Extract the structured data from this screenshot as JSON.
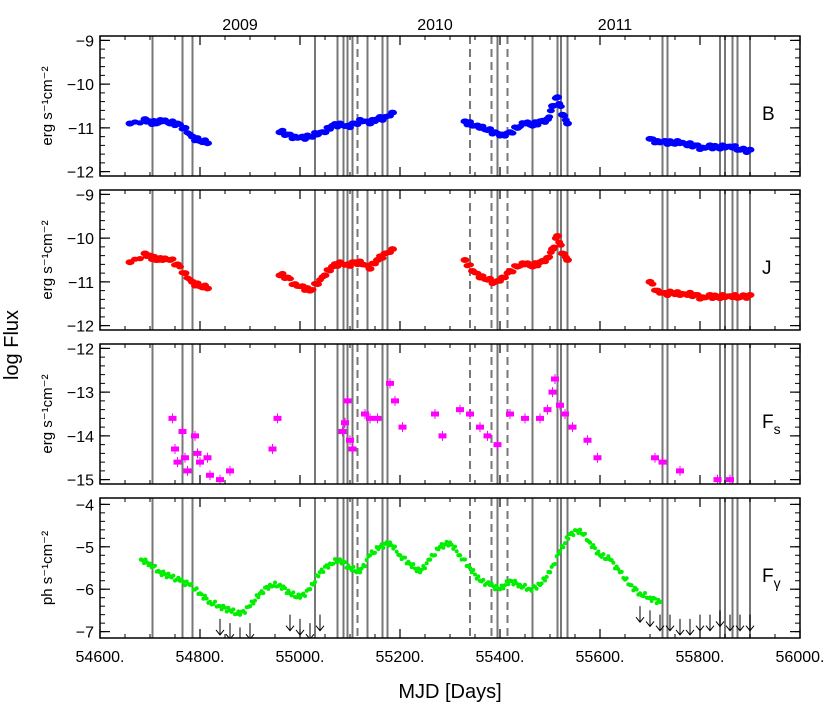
{
  "figure": {
    "ylabel": "log Flux",
    "xlabel": "MJD [Days]",
    "year_labels": [
      {
        "text": "2009",
        "mjd": 54880
      },
      {
        "text": "2010",
        "mjd": 55270
      },
      {
        "text": "2011",
        "mjd": 55630
      }
    ]
  },
  "colors": {
    "B": "#0000ff",
    "J": "#ff0000",
    "Fs": "#ff00ff",
    "Fgamma": "#00ee00",
    "upper_limits": "#000000",
    "event_lines": "#777777"
  },
  "chart_data": [
    {
      "type": "scatter",
      "panel": "B",
      "label": "B",
      "ylabel": "erg s⁻¹cm⁻²",
      "xlim": [
        54600,
        56000
      ],
      "ylim": [
        -12.1,
        -8.9
      ],
      "yticks": [
        -9,
        -10,
        -11,
        -12
      ],
      "x": [
        54660,
        54690,
        54700,
        54712,
        54725,
        54740,
        54755,
        54770,
        54785,
        54800,
        54815,
        54960,
        54975,
        54990,
        55005,
        55020,
        55035,
        55050,
        55065,
        55080,
        55095,
        55110,
        55125,
        55140,
        55155,
        55170,
        55185,
        55330,
        55345,
        55360,
        55375,
        55390,
        55405,
        55420,
        55435,
        55450,
        55465,
        55480,
        55495,
        55505,
        55515,
        55525,
        55535,
        55700,
        55715,
        55730,
        55745,
        55760,
        55775,
        55790,
        55805,
        55820,
        55835,
        55850,
        55865,
        55880,
        55900
      ],
      "y": [
        -10.9,
        -10.8,
        -10.85,
        -10.9,
        -10.85,
        -10.9,
        -10.9,
        -11.0,
        -11.2,
        -11.3,
        -11.35,
        -11.1,
        -11.15,
        -11.2,
        -11.2,
        -11.2,
        -11.15,
        -11.1,
        -10.95,
        -10.9,
        -10.95,
        -10.9,
        -10.85,
        -10.9,
        -10.8,
        -10.75,
        -10.65,
        -10.85,
        -10.95,
        -11.0,
        -11.05,
        -11.1,
        -11.15,
        -11.1,
        -11.0,
        -10.9,
        -10.95,
        -10.85,
        -10.8,
        -10.5,
        -10.3,
        -10.7,
        -10.9,
        -11.25,
        -11.3,
        -11.3,
        -11.35,
        -11.35,
        -11.4,
        -11.4,
        -11.45,
        -11.4,
        -11.45,
        -11.45,
        -11.45,
        -11.5,
        -11.5
      ]
    },
    {
      "type": "scatter",
      "panel": "J",
      "label": "J",
      "ylabel": "erg s⁻¹cm⁻²",
      "xlim": [
        54600,
        56000
      ],
      "ylim": [
        -12.1,
        -8.9
      ],
      "yticks": [
        -9,
        -10,
        -11,
        -12
      ],
      "x": [
        54660,
        54690,
        54700,
        54712,
        54725,
        54740,
        54755,
        54770,
        54785,
        54800,
        54815,
        54960,
        54975,
        54990,
        55005,
        55020,
        55035,
        55050,
        55065,
        55080,
        55095,
        55110,
        55125,
        55140,
        55155,
        55170,
        55185,
        55330,
        55345,
        55360,
        55375,
        55390,
        55405,
        55420,
        55435,
        55450,
        55465,
        55480,
        55495,
        55505,
        55515,
        55525,
        55535,
        55700,
        55715,
        55730,
        55745,
        55760,
        55775,
        55790,
        55805,
        55820,
        55835,
        55850,
        55865,
        55880,
        55900
      ],
      "y": [
        -10.55,
        -10.35,
        -10.4,
        -10.5,
        -10.5,
        -10.5,
        -10.6,
        -10.8,
        -11.0,
        -11.1,
        -11.15,
        -10.85,
        -10.9,
        -11.05,
        -11.1,
        -11.2,
        -11.05,
        -10.85,
        -10.65,
        -10.55,
        -10.6,
        -10.55,
        -10.6,
        -10.7,
        -10.5,
        -10.35,
        -10.25,
        -10.5,
        -10.75,
        -10.9,
        -10.95,
        -11.0,
        -10.9,
        -10.75,
        -10.65,
        -10.6,
        -10.65,
        -10.55,
        -10.45,
        -10.25,
        -9.95,
        -10.35,
        -10.5,
        -11.0,
        -11.2,
        -11.25,
        -11.25,
        -11.3,
        -11.3,
        -11.3,
        -11.35,
        -11.3,
        -11.35,
        -11.35,
        -11.35,
        -11.35,
        -11.3
      ]
    },
    {
      "type": "scatter",
      "panel": "Fs",
      "label": "F_s",
      "ylabel": "erg s⁻¹cm⁻²",
      "xlim": [
        54600,
        56000
      ],
      "ylim": [
        -15.1,
        -11.9
      ],
      "yticks": [
        -12,
        -13,
        -14,
        -15
      ],
      "x": [
        54745,
        54750,
        54755,
        54765,
        54770,
        54775,
        54790,
        54795,
        54800,
        54815,
        54820,
        54840,
        54860,
        54945,
        54955,
        55085,
        55090,
        55095,
        55100,
        55105,
        55130,
        55140,
        55155,
        55180,
        55190,
        55205,
        55270,
        55285,
        55320,
        55340,
        55360,
        55375,
        55395,
        55420,
        55450,
        55480,
        55495,
        55505,
        55510,
        55520,
        55530,
        55545,
        55575,
        55595,
        55710,
        55725,
        55760,
        55835,
        55860
      ],
      "y": [
        -13.6,
        -14.3,
        -14.6,
        -13.9,
        -14.5,
        -14.8,
        -14.0,
        -14.4,
        -14.6,
        -14.5,
        -14.9,
        -15.0,
        -14.8,
        -14.3,
        -13.6,
        -13.9,
        -13.7,
        -13.2,
        -14.1,
        -14.3,
        -13.5,
        -13.6,
        -13.6,
        -12.8,
        -13.2,
        -13.8,
        -13.5,
        -14.0,
        -13.4,
        -13.5,
        -13.8,
        -14.0,
        -14.2,
        -13.5,
        -13.6,
        -13.6,
        -13.4,
        -13.0,
        -12.7,
        -13.3,
        -13.5,
        -13.8,
        -14.1,
        -14.5,
        -14.5,
        -14.6,
        -14.8,
        -15.0,
        -15.0
      ]
    },
    {
      "type": "scatter",
      "panel": "Fgamma",
      "label": "F_γ",
      "ylabel": "ph s⁻¹cm⁻²",
      "xlim": [
        54600,
        56000
      ],
      "ylim": [
        -7.15,
        -3.85
      ],
      "yticks": [
        -4,
        -5,
        -6,
        -7
      ],
      "x": [
        54682,
        54700,
        54720,
        54740,
        54760,
        54780,
        54800,
        54820,
        54840,
        54860,
        54880,
        54900,
        54920,
        54940,
        54960,
        54980,
        55000,
        55020,
        55040,
        55060,
        55080,
        55100,
        55120,
        55140,
        55160,
        55180,
        55200,
        55220,
        55240,
        55260,
        55280,
        55300,
        55320,
        55340,
        55360,
        55380,
        55400,
        55420,
        55440,
        55460,
        55480,
        55500,
        55520,
        55540,
        55560,
        55580,
        55600,
        55620,
        55640,
        55660,
        55680,
        55700,
        55720
      ],
      "y": [
        -5.3,
        -5.4,
        -5.6,
        -5.7,
        -5.8,
        -5.9,
        -6.1,
        -6.3,
        -6.4,
        -6.5,
        -6.6,
        -6.4,
        -6.1,
        -5.9,
        -5.9,
        -6.1,
        -6.2,
        -6.0,
        -5.6,
        -5.4,
        -5.3,
        -5.5,
        -5.6,
        -5.2,
        -5.0,
        -4.9,
        -5.2,
        -5.4,
        -5.6,
        -5.3,
        -5.0,
        -4.9,
        -5.2,
        -5.5,
        -5.8,
        -5.9,
        -6.0,
        -5.8,
        -5.9,
        -6.0,
        -5.9,
        -5.6,
        -5.1,
        -4.7,
        -4.6,
        -4.9,
        -5.2,
        -5.3,
        -5.6,
        -5.9,
        -6.1,
        -6.2,
        -6.3
      ],
      "upper_limit_mjd": [
        54840,
        54860,
        54880,
        54900,
        54980,
        55000,
        55020,
        55040,
        55680,
        55700,
        55720,
        55740,
        55760,
        55780,
        55800,
        55820,
        55840,
        55860,
        55880,
        55900
      ],
      "upper_limit_value": [
        -6.7,
        -6.8,
        -6.9,
        -6.8,
        -6.6,
        -6.7,
        -6.8,
        -6.6,
        -6.4,
        -6.5,
        -6.6,
        -6.6,
        -6.7,
        -6.7,
        -6.6,
        -6.6,
        -6.5,
        -6.6,
        -6.6,
        -6.6
      ]
    }
  ],
  "event_lines": {
    "solid": [
      54705,
      54765,
      54785,
      55030,
      55075,
      55087,
      55095,
      55105,
      55135,
      55165,
      55175,
      55395,
      55465,
      55515,
      55522,
      55535,
      55725,
      55735,
      55840,
      55850,
      55865,
      55875,
      55900
    ],
    "dashed": [
      55115,
      55340,
      55383,
      55415
    ]
  },
  "xaxis": {
    "ticks": [
      54600,
      54800,
      55000,
      55200,
      55400,
      55600,
      55800,
      56000
    ],
    "tick_labels": [
      "54600.",
      "54800.",
      "55000.",
      "55200.",
      "55400.",
      "55600.",
      "55800.",
      "56000."
    ]
  }
}
